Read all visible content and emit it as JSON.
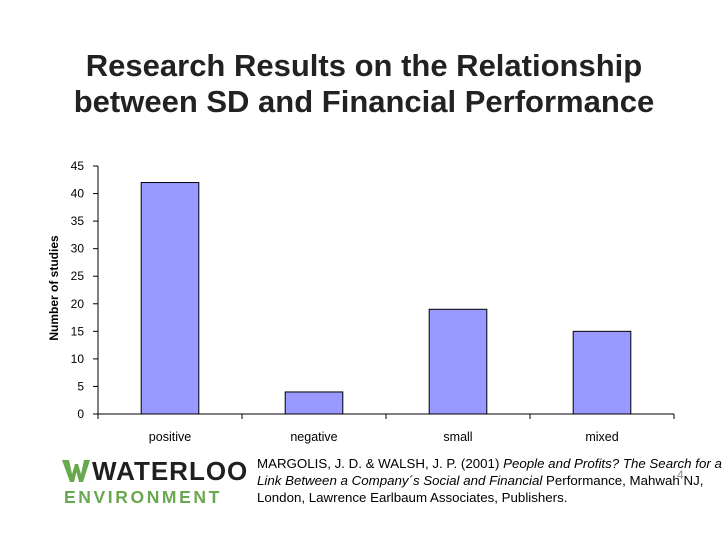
{
  "slide": {
    "title_line1": "Research Results on the Relationship",
    "title_line2": "between SD and Financial Performance",
    "page_number": "4"
  },
  "citation": {
    "part1": "MARGOLIS, J. D. & WALSH, J. P. (2001) ",
    "italic": "People and Profits? The Search for a Link Between a Company´s Social and Financial",
    "part2": " Performance, Mahwah NJ, London, Lawrence Earlbaum Associates, Publishers."
  },
  "logo": {
    "line1": "WATERLOO",
    "line2": "ENVIRONMENT",
    "color_green": "#6aa84f",
    "color_dark": "#1f1f1f"
  },
  "chart_data": {
    "type": "bar",
    "categories": [
      "positive",
      "negative",
      "small",
      "mixed"
    ],
    "values": [
      42,
      4,
      19,
      15
    ],
    "ylabel": "Number of studies",
    "xlabel": "",
    "ylim": [
      0,
      45
    ],
    "yticks": [
      0,
      5,
      10,
      15,
      20,
      25,
      30,
      35,
      40,
      45
    ],
    "grid": false,
    "bar_color": "#9999ff",
    "bar_stroke": "#000000"
  }
}
